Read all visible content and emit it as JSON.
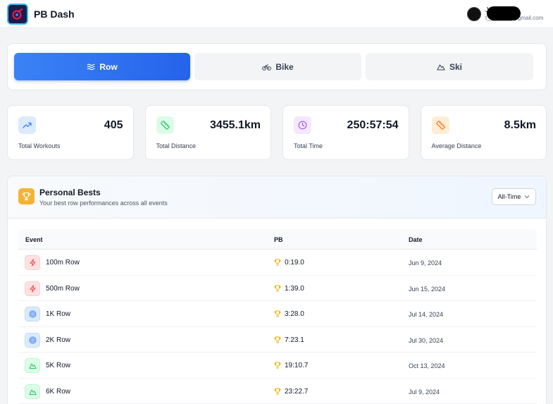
{
  "header": {
    "app_title": "PB Dash",
    "user_name": "Jacob B",
    "user_email": "t________@gmail.com"
  },
  "tabs": [
    {
      "label": "Row",
      "icon": "waves-icon",
      "active": true
    },
    {
      "label": "Bike",
      "icon": "bike-icon",
      "active": false
    },
    {
      "label": "Ski",
      "icon": "mountain-icon",
      "active": false
    }
  ],
  "stats": [
    {
      "label": "Total Workouts",
      "value": "405",
      "icon": "trending-up-icon",
      "color": "#3b82f6"
    },
    {
      "label": "Total Distance",
      "value": "3455.1km",
      "icon": "ruler-icon",
      "color": "#22c55e"
    },
    {
      "label": "Total Time",
      "value": "250:57:54",
      "icon": "clock-icon",
      "color": "#a855f7"
    },
    {
      "label": "Average Distance",
      "value": "8.5km",
      "icon": "ruler-icon",
      "color": "#f97316"
    }
  ],
  "personal_bests": {
    "title": "Personal Bests",
    "subtitle": "Your best row performances across all events",
    "filter": "All-Time",
    "columns": {
      "event": "Event",
      "pb": "PB",
      "date": "Date"
    },
    "rows": [
      {
        "event": "100m Row",
        "pb": "0:19.0",
        "date": "Jun 9, 2024",
        "icon": "zap-icon",
        "color": "#ef4444"
      },
      {
        "event": "500m Row",
        "pb": "1:39.0",
        "date": "Jun 15, 2024",
        "icon": "zap-icon",
        "color": "#ef4444"
      },
      {
        "event": "1K Row",
        "pb": "3:28.0",
        "date": "Jul 14, 2024",
        "icon": "target-icon",
        "color": "#3b82f6"
      },
      {
        "event": "2K Row",
        "pb": "7:23.1",
        "date": "Jul 30, 2024",
        "icon": "target-icon",
        "color": "#3b82f6"
      },
      {
        "event": "5K Row",
        "pb": "19:10.7",
        "date": "Oct 13, 2024",
        "icon": "mountain-icon",
        "color": "#22c55e"
      },
      {
        "event": "6K Row",
        "pb": "23:22.7",
        "date": "Jul 9, 2024",
        "icon": "mountain-icon",
        "color": "#22c55e"
      }
    ]
  }
}
